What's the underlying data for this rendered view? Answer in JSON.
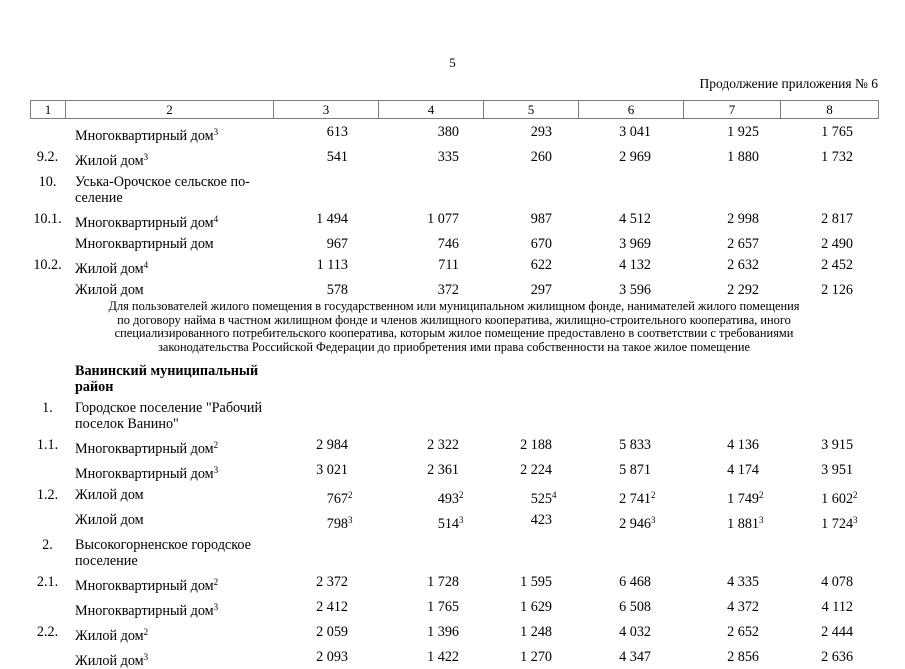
{
  "page": {
    "number": "5",
    "continuation": "Продолжение приложения № 6"
  },
  "note_lines": [
    "Для пользователей жилого помещения в государственном или муниципальном жилищном фонде, нанимателей жилого помещения",
    "по договору найма в частном жилищном фонде и членов жилищного кооператива, жилищно-строительного кооператива, иного",
    "специализированного потребительского кооператива, которым жилое помещение предоставлено в соответствии с требованиями",
    "законодательства Российской Федерации до приобретения ими права собственности на такое жилое помещение"
  ],
  "table": {
    "header_cols": [
      "1",
      "2",
      "3",
      "4",
      "5",
      "6",
      "7",
      "8"
    ],
    "rows_top": [
      {
        "num": "",
        "label": [
          "Многоквартирный дом"
        ],
        "label_sup": "3",
        "values": [
          "613",
          "380",
          "293",
          "3 041",
          "1 925",
          "1 765"
        ]
      },
      {
        "num": "9.2.",
        "label": [
          "Жилой дом"
        ],
        "label_sup": "3",
        "values": [
          "541",
          "335",
          "260",
          "2 969",
          "1 880",
          "1 732"
        ]
      },
      {
        "num": "10.",
        "label": [
          "Уська-Орочское сельское по-",
          "селение"
        ],
        "values": []
      },
      {
        "num": "10.1.",
        "label": [
          "Многоквартирный дом"
        ],
        "label_sup": "4",
        "values": [
          "1 494",
          "1 077",
          "987",
          "4 512",
          "2 998",
          "2 817"
        ]
      },
      {
        "num": "",
        "label": [
          "Многоквартирный дом"
        ],
        "values": [
          "967",
          "746",
          "670",
          "3 969",
          "2 657",
          "2 490"
        ]
      },
      {
        "num": "10.2.",
        "label": [
          "Жилой дом"
        ],
        "label_sup": "4",
        "values": [
          "1 113",
          "711",
          "622",
          "4 132",
          "2 632",
          "2 452"
        ]
      },
      {
        "num": "",
        "label": [
          "Жилой дом"
        ],
        "values": [
          "578",
          "372",
          "297",
          "3 596",
          "2 292",
          "2 126"
        ]
      }
    ],
    "rows_bottom": [
      {
        "num": "",
        "label": [
          "Ванинский муниципальный",
          "район"
        ],
        "bold": true,
        "values": []
      },
      {
        "num": "1.",
        "label": [
          "Городское поселение \"Рабочий",
          "поселок Ванино\""
        ],
        "values": []
      },
      {
        "num": "1.1.",
        "label": [
          "Многоквартирный дом"
        ],
        "label_sup": "2",
        "values": [
          "2 984",
          "2 322",
          "2 188",
          "5 833",
          "4 136",
          "3 915"
        ]
      },
      {
        "num": "",
        "label": [
          "Многоквартирный дом"
        ],
        "label_sup": "3",
        "values": [
          "3 021",
          "2 361",
          "2 224",
          "5 871",
          "4 174",
          "3 951"
        ]
      },
      {
        "num": "1.2.",
        "label": [
          "Жилой дом"
        ],
        "values": [
          "767^2",
          "493^2",
          "525^4",
          "2 741^2",
          "1 749^2",
          "1 602^2"
        ]
      },
      {
        "num": "",
        "label": [
          "Жилой дом"
        ],
        "values": [
          "798^3",
          "514^3",
          "423",
          "2 946^3",
          "1 881^3",
          "1 724^3"
        ]
      },
      {
        "num": "2.",
        "label": [
          "Высокогорненское городское",
          "поселение"
        ],
        "values": []
      },
      {
        "num": "2.1.",
        "label": [
          "Многоквартирный дом"
        ],
        "label_sup": "2",
        "values": [
          "2 372",
          "1 728",
          "1 595",
          "6 468",
          "4 335",
          "4 078"
        ]
      },
      {
        "num": "",
        "label": [
          "Многоквартирный дом"
        ],
        "label_sup": "3",
        "values": [
          "2 412",
          "1 765",
          "1 629",
          "6 508",
          "4 372",
          "4 112"
        ]
      },
      {
        "num": "2.2.",
        "label": [
          "Жилой дом"
        ],
        "label_sup": "2",
        "values": [
          "2 059",
          "1 396",
          "1 248",
          "4 032",
          "2 652",
          "2 444"
        ]
      },
      {
        "num": "",
        "label": [
          "Жилой дом"
        ],
        "label_sup": "3",
        "values": [
          "2 093",
          "1 422",
          "1 270",
          "4 347",
          "2 856",
          "2 636"
        ]
      }
    ]
  }
}
